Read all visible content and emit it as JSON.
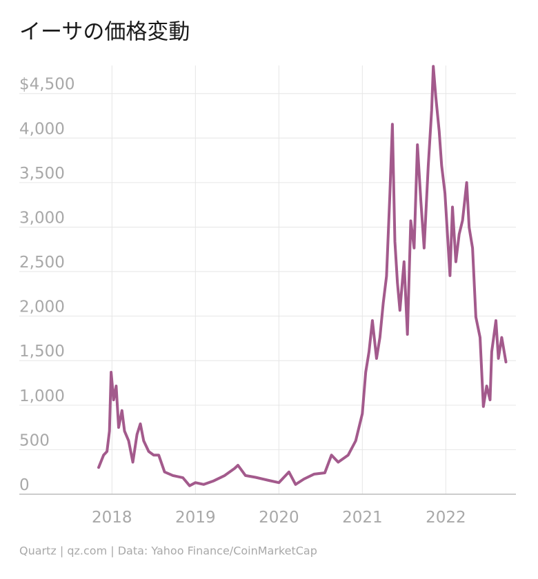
{
  "chart_data": {
    "type": "line",
    "title": "イーサの価格変動",
    "source": "Quartz | qz.com | Data: Yahoo Finance/CoinMarketCap",
    "color": "#a35a8c",
    "grid": true,
    "x": [
      2017.84,
      2017.9,
      2017.94,
      2017.97,
      2017.99,
      2018.02,
      2018.05,
      2018.08,
      2018.12,
      2018.15,
      2018.2,
      2018.25,
      2018.3,
      2018.34,
      2018.38,
      2018.44,
      2018.5,
      2018.56,
      2018.63,
      2018.73,
      2018.85,
      2018.93,
      2019.0,
      2019.1,
      2019.22,
      2019.35,
      2019.47,
      2019.51,
      2019.6,
      2019.72,
      2019.88,
      2020.0,
      2020.12,
      2020.2,
      2020.3,
      2020.42,
      2020.55,
      2020.63,
      2020.71,
      2020.83,
      2020.92,
      2021.0,
      2021.04,
      2021.08,
      2021.12,
      2021.17,
      2021.21,
      2021.25,
      2021.29,
      2021.33,
      2021.36,
      2021.39,
      2021.42,
      2021.45,
      2021.5,
      2021.54,
      2021.58,
      2021.62,
      2021.66,
      2021.7,
      2021.74,
      2021.79,
      2021.83,
      2021.85,
      2021.88,
      2021.92,
      2021.95,
      2021.99,
      2022.05,
      2022.08,
      2022.12,
      2022.16,
      2022.2,
      2022.25,
      2022.28,
      2022.32,
      2022.36,
      2022.41,
      2022.45,
      2022.49,
      2022.53,
      2022.55,
      2022.6,
      2022.63,
      2022.67,
      2022.72
    ],
    "values": [
      300,
      440,
      480,
      710,
      1370,
      1060,
      1215,
      750,
      940,
      710,
      600,
      360,
      670,
      790,
      600,
      480,
      440,
      440,
      250,
      210,
      185,
      95,
      130,
      110,
      150,
      210,
      290,
      325,
      210,
      190,
      155,
      130,
      250,
      110,
      170,
      225,
      240,
      440,
      360,
      440,
      600,
      905,
      1370,
      1600,
      1950,
      1525,
      1760,
      2145,
      2450,
      3380,
      4155,
      2840,
      2375,
      2065,
      2610,
      1795,
      3070,
      2765,
      3925,
      3300,
      2765,
      3690,
      4310,
      4805,
      4465,
      4080,
      3690,
      3380,
      2455,
      3225,
      2610,
      2920,
      3075,
      3500,
      2995,
      2765,
      1990,
      1760,
      985,
      1215,
      1060,
      1600,
      1950,
      1525,
      1760,
      1485
    ],
    "xlim": [
      2016.89,
      2022.84
    ],
    "xticks": [
      2018,
      2019,
      2020,
      2021,
      2022
    ],
    "ylim": [
      0,
      4815
    ],
    "yticks": [
      0,
      500,
      {
        "value": 1000,
        "label": "1,000"
      },
      {
        "value": 1500,
        "label": "1,500"
      },
      {
        "value": 2000,
        "label": "2,000"
      },
      {
        "value": 2500,
        "label": "2,500"
      },
      {
        "value": 3000,
        "label": "3,000"
      },
      {
        "value": 3500,
        "label": "3,500"
      },
      {
        "value": 4000,
        "label": "4,000"
      },
      {
        "value": 4500,
        "label": "$4,500"
      }
    ]
  }
}
